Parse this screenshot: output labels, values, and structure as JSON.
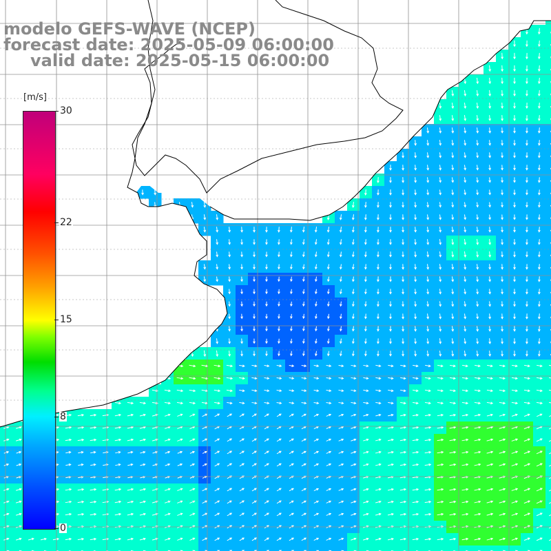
{
  "title": {
    "line1": "modelo GEFS-WAVE (NCEP)",
    "line2": "forecast date: 2025-05-09 06:00:00",
    "line3": "valid date: 2025-05-15 06:00:00"
  },
  "colorbar": {
    "units": "[m/s]",
    "ticks": [
      {
        "value": 30,
        "label": "30"
      },
      {
        "value": 22,
        "label": "22"
      },
      {
        "value": 15,
        "label": "15"
      },
      {
        "value": 8,
        "label": "8"
      },
      {
        "value": 0,
        "label": "0"
      }
    ],
    "range": [
      0,
      30
    ]
  },
  "map": {
    "grid": true,
    "land_color": "#ffffff",
    "coast_color": "#000000",
    "arrow_color": "#ffffff",
    "grid_color": "#909090",
    "field_colors": {
      "low": "#0000ff",
      "medium_low": "#0064ff",
      "medium": "#00b4ff",
      "medium_high": "#00ffd0",
      "high": "#30ff30"
    }
  }
}
